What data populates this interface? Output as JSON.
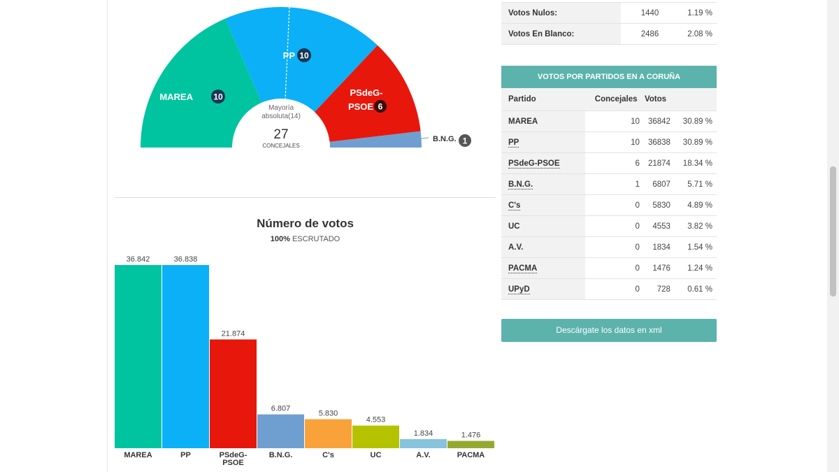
{
  "hemicycle": {
    "center_line1": "Mayoría",
    "center_line2": "absoluta(14)",
    "center_total": "27",
    "center_unit": "CONCEJALES",
    "parties": [
      {
        "label": "MAREA",
        "seats": "10",
        "color": "#00c4a0"
      },
      {
        "label": "PP",
        "seats": "10",
        "color": "#0bb0f7"
      },
      {
        "label_line1": "PSdeG-",
        "label_line2": "PSOE",
        "seats": "6",
        "color": "#e8170c"
      },
      {
        "label": "B.N.G.",
        "seats": "1",
        "color": "#6f9fd0"
      }
    ]
  },
  "chart_data": {
    "type": "bar",
    "title": "Número de votos",
    "subtitle_bold": "100%",
    "subtitle_rest": "ESCRUTADO",
    "categories": [
      "MAREA",
      "PP",
      "PSdeG-PSOE",
      "B.N.G.",
      "C's",
      "UC",
      "A.V.",
      "PACMA"
    ],
    "category_lines": [
      [
        "MAREA"
      ],
      [
        "PP"
      ],
      [
        "PSdeG-",
        "PSOE"
      ],
      [
        "B.N.G."
      ],
      [
        "C's"
      ],
      [
        "UC"
      ],
      [
        "A.V."
      ],
      [
        "PACMA"
      ]
    ],
    "values": [
      36842,
      36838,
      21874,
      6807,
      5830,
      4553,
      1834,
      1476
    ],
    "value_labels": [
      "36.842",
      "36.838",
      "21.874",
      "6.807",
      "5.830",
      "4.553",
      "1.834",
      "1.476"
    ],
    "colors": [
      "#00c4a0",
      "#0bb0f7",
      "#e8170c",
      "#6f9fd0",
      "#f9a23a",
      "#b5c200",
      "#86c3dc",
      "#97a832"
    ],
    "ylim": [
      0,
      36842
    ]
  },
  "summary_table": {
    "rows": [
      {
        "label": "Votos Nulos:",
        "count": "1440",
        "pct": "1.19 %"
      },
      {
        "label": "Votos En Blanco:",
        "count": "2486",
        "pct": "2.08 %"
      }
    ]
  },
  "party_table": {
    "header": "VOTOS POR PARTIDOS EN A CORUÑA",
    "columns": [
      "Partido",
      "Concejales",
      "Votos"
    ],
    "rows": [
      {
        "party": "MAREA",
        "seats": "10",
        "votes": "36842",
        "pct": "30.89 %",
        "abbr": false
      },
      {
        "party": "PP",
        "seats": "10",
        "votes": "36838",
        "pct": "30.89 %",
        "abbr": true
      },
      {
        "party": "PSdeG-PSOE",
        "seats": "6",
        "votes": "21874",
        "pct": "18.34 %",
        "abbr": true
      },
      {
        "party": "B.N.G.",
        "seats": "1",
        "votes": "6807",
        "pct": "5.71 %",
        "abbr": true
      },
      {
        "party": "C's",
        "seats": "0",
        "votes": "5830",
        "pct": "4.89 %",
        "abbr": true
      },
      {
        "party": "UC",
        "seats": "0",
        "votes": "4553",
        "pct": "3.82 %",
        "abbr": false
      },
      {
        "party": "A.V.",
        "seats": "0",
        "votes": "1834",
        "pct": "1.54 %",
        "abbr": false
      },
      {
        "party": "PACMA",
        "seats": "0",
        "votes": "1476",
        "pct": "1.24 %",
        "abbr": true
      },
      {
        "party": "UPyD",
        "seats": "0",
        "votes": "728",
        "pct": "0.61 %",
        "abbr": true
      }
    ]
  },
  "download_label": "Descárgate los datos en xml"
}
